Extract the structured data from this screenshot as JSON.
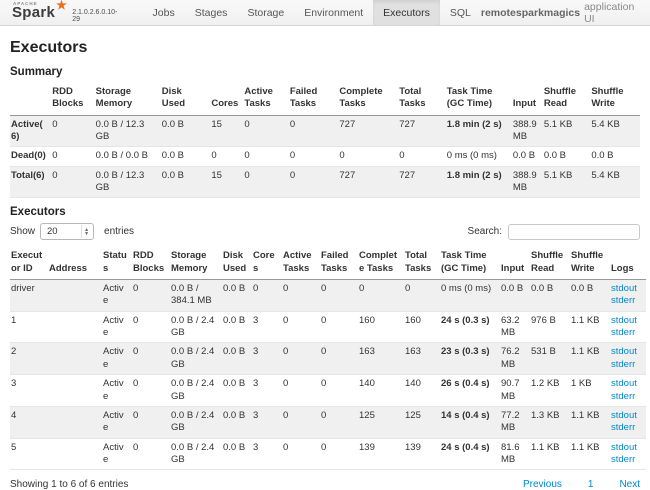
{
  "navbar": {
    "logo": {
      "apache": "APACHE",
      "brand": "Spark",
      "version": "2.1.0.2.6.0.10-29"
    },
    "tabs": [
      {
        "label": "Jobs",
        "active": false
      },
      {
        "label": "Stages",
        "active": false
      },
      {
        "label": "Storage",
        "active": false
      },
      {
        "label": "Environment",
        "active": false
      },
      {
        "label": "Executors",
        "active": true
      },
      {
        "label": "SQL",
        "active": false
      }
    ],
    "app_name": "remotesparkmagics",
    "app_suffix": "application UI"
  },
  "page": {
    "title": "Executors"
  },
  "summary": {
    "heading": "Summary",
    "columns": [
      "",
      "RDD Blocks",
      "Storage Memory",
      "Disk Used",
      "Cores",
      "Active Tasks",
      "Failed Tasks",
      "Complete Tasks",
      "Total Tasks",
      "Task Time (GC Time)",
      "Input",
      "Shuffle Read",
      "Shuffle Write"
    ],
    "rows": [
      {
        "label": "Active(6)",
        "cells": [
          "0",
          "0.0 B / 12.3 GB",
          "0.0 B",
          "15",
          "0",
          "0",
          "727",
          "727",
          "1.8 min (2 s)",
          "388.9 MB",
          "5.1 KB",
          "5.4 KB"
        ]
      },
      {
        "label": "Dead(0)",
        "cells": [
          "0",
          "0.0 B / 0.0 B",
          "0.0 B",
          "0",
          "0",
          "0",
          "0",
          "0",
          "0 ms (0 ms)",
          "0.0 B",
          "0.0 B",
          "0.0 B"
        ]
      },
      {
        "label": "Total(6)",
        "cells": [
          "0",
          "0.0 B / 12.3 GB",
          "0.0 B",
          "15",
          "0",
          "0",
          "727",
          "727",
          "1.8 min (2 s)",
          "388.9 MB",
          "5.1 KB",
          "5.4 KB"
        ]
      }
    ]
  },
  "executors": {
    "heading": "Executors",
    "show_label": "Show",
    "page_size": "20",
    "entries_label": "entries",
    "search_label": "Search:",
    "search_value": "",
    "columns": [
      "Executor ID",
      "Address",
      "Status",
      "RDD Blocks",
      "Storage Memory",
      "Disk Used",
      "Cores",
      "Active Tasks",
      "Failed Tasks",
      "Complete Tasks",
      "Total Tasks",
      "Task Time (GC Time)",
      "Input",
      "Shuffle Read",
      "Shuffle Write",
      "Logs"
    ],
    "rows": [
      {
        "cells": [
          "driver",
          "",
          "Active",
          "0",
          "0.0 B / 384.1 MB",
          "0.0 B",
          "0",
          "0",
          "0",
          "0",
          "0",
          "0 ms (0 ms)",
          "0.0 B",
          "0.0 B",
          "0.0 B"
        ],
        "logs": [
          "stdout",
          "stderr"
        ]
      },
      {
        "cells": [
          "1",
          "",
          "Active",
          "0",
          "0.0 B / 2.4 GB",
          "0.0 B",
          "3",
          "0",
          "0",
          "160",
          "160",
          "24 s (0.3 s)",
          "63.2 MB",
          "976 B",
          "1.1 KB"
        ],
        "logs": [
          "stdout",
          "stderr"
        ]
      },
      {
        "cells": [
          "2",
          "",
          "Active",
          "0",
          "0.0 B / 2.4 GB",
          "0.0 B",
          "3",
          "0",
          "0",
          "163",
          "163",
          "23 s (0.3 s)",
          "76.2 MB",
          "531 B",
          "1.1 KB"
        ],
        "logs": [
          "stdout",
          "stderr"
        ]
      },
      {
        "cells": [
          "3",
          "",
          "Active",
          "0",
          "0.0 B / 2.4 GB",
          "0.0 B",
          "3",
          "0",
          "0",
          "140",
          "140",
          "26 s (0.4 s)",
          "90.7 MB",
          "1.2 KB",
          "1 KB"
        ],
        "logs": [
          "stdout",
          "stderr"
        ]
      },
      {
        "cells": [
          "4",
          "",
          "Active",
          "0",
          "0.0 B / 2.4 GB",
          "0.0 B",
          "3",
          "0",
          "0",
          "125",
          "125",
          "14 s (0.4 s)",
          "77.2 MB",
          "1.3 KB",
          "1.1 KB"
        ],
        "logs": [
          "stdout",
          "stderr"
        ]
      },
      {
        "cells": [
          "5",
          "",
          "Active",
          "0",
          "0.0 B / 2.4 GB",
          "0.0 B",
          "3",
          "0",
          "0",
          "139",
          "139",
          "24 s (0.4 s)",
          "81.6 MB",
          "1.1 KB",
          "1.1 KB"
        ],
        "logs": [
          "stdout",
          "stderr"
        ]
      }
    ],
    "footer": {
      "showing": "Showing 1 to 6 of 6 entries",
      "previous": "Previous",
      "page": "1",
      "next": "Next"
    }
  }
}
